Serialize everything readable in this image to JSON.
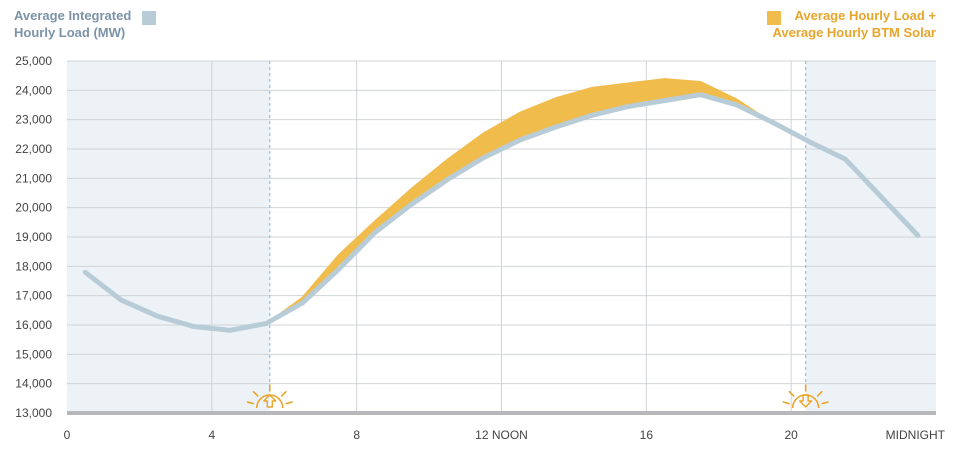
{
  "legend": {
    "left_line1": "Average Integrated",
    "left_line2": "Hourly Load (MW)",
    "right_line1": "Average Hourly Load +",
    "right_line2": "Average Hourly BTM Solar"
  },
  "colors": {
    "load": "#b8ccd8",
    "solar": "#f0bc4c",
    "shade": "#edf2f7",
    "grid": "#d0d4d8",
    "axis": "#b8b8bc",
    "marker": "#9ec3e0",
    "label_left": "#7b93a8",
    "label_right": "#e9a52a"
  },
  "markers": {
    "sunrise_icon": "sunrise-icon",
    "sunset_icon": "sunset-icon"
  },
  "chart_data": {
    "type": "area",
    "xlim": [
      0,
      24
    ],
    "ylim": [
      13000,
      25000
    ],
    "yticks": [
      13000,
      14000,
      15000,
      16000,
      17000,
      18000,
      19000,
      20000,
      21000,
      22000,
      23000,
      24000,
      25000
    ],
    "ytick_labels": [
      "13,000",
      "14,000",
      "15,000",
      "16,000",
      "17,000",
      "18,000",
      "19,000",
      "20,000",
      "21,000",
      "22,000",
      "23,000",
      "24,000",
      "25,000"
    ],
    "xticks": [
      0,
      4,
      8,
      12,
      16,
      20,
      24
    ],
    "xtick_labels": [
      "0",
      "4",
      "8",
      "12 NOON",
      "16",
      "20",
      "MIDNIGHT"
    ],
    "night_shading": [
      [
        0,
        5.6
      ],
      [
        20.4,
        24
      ]
    ],
    "sunrise": 5.6,
    "sunset": 20.4,
    "grid_x": [
      4,
      8,
      12,
      16,
      20
    ],
    "grid_y": true,
    "series": [
      {
        "name": "Average Integrated Hourly Load (MW)",
        "x": [
          0.5,
          1.5,
          2.5,
          3.5,
          4.5,
          5.5,
          6.5,
          7.5,
          8.5,
          9.5,
          10.5,
          11.5,
          12.5,
          13.5,
          14.5,
          15.5,
          16.5,
          17.5,
          18.5,
          19.5,
          20.5,
          21.5,
          22.5,
          23.5
        ],
        "values": [
          17800,
          16850,
          16300,
          15950,
          15820,
          16050,
          16750,
          17900,
          19150,
          20100,
          20950,
          21700,
          22300,
          22750,
          23150,
          23450,
          23650,
          23850,
          23500,
          22900,
          22250,
          21650,
          20350,
          19050
        ]
      },
      {
        "name": "Average Hourly Load + Average Hourly BTM Solar",
        "x": [
          5.5,
          6.5,
          7.5,
          8.5,
          9.5,
          10.5,
          11.5,
          12.5,
          13.5,
          14.5,
          15.5,
          16.5,
          17.5,
          18.5,
          19.5,
          20.5
        ],
        "values": [
          16050,
          16950,
          18400,
          19550,
          20650,
          21650,
          22550,
          23250,
          23750,
          24100,
          24250,
          24400,
          24300,
          23700,
          22900,
          22250
        ]
      }
    ]
  }
}
